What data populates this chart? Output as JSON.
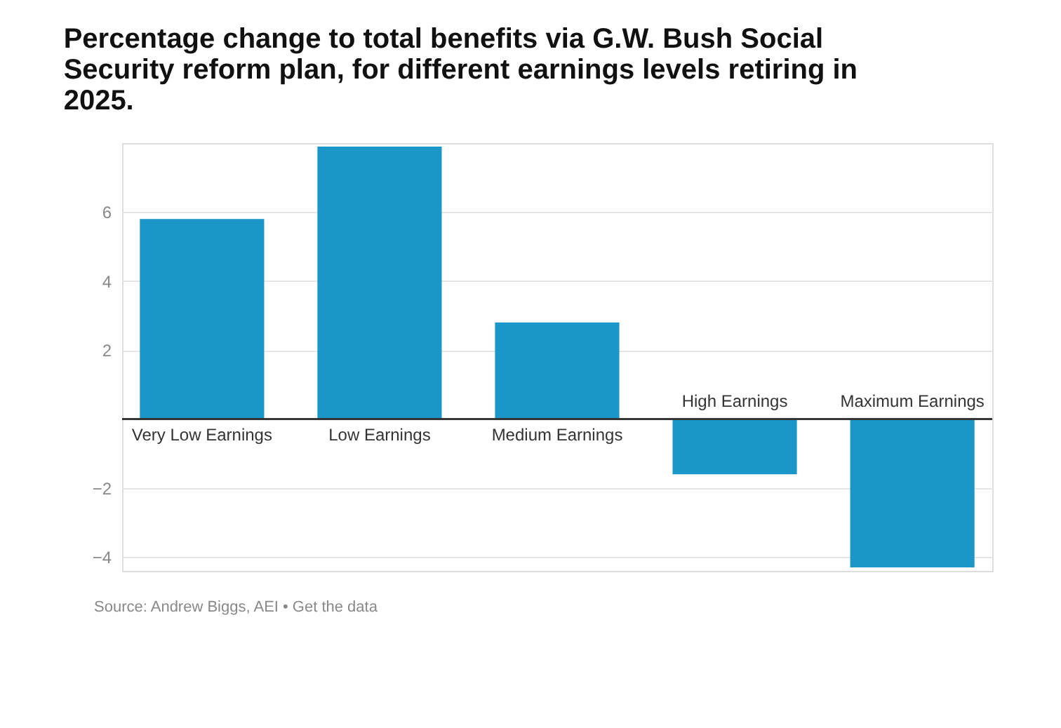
{
  "chart_data": {
    "type": "bar",
    "title": "Percentage change to total benefits via G.W. Bush Social Security reform plan, for different earnings levels retiring in 2025.",
    "categories": [
      "Very Low Earnings",
      "Low Earnings",
      "Medium Earnings",
      "High Earnings",
      "Maximum Earnings"
    ],
    "values": [
      5.8,
      7.9,
      2.8,
      -1.6,
      -4.3
    ],
    "color": "#1a96c8",
    "ylim": [
      -4.4,
      8
    ],
    "yticks": [
      -4,
      -2,
      2,
      4,
      6
    ],
    "grid": "y",
    "annotations": [
      "Source: Andrew Biggs, AEI • Get the data"
    ]
  }
}
